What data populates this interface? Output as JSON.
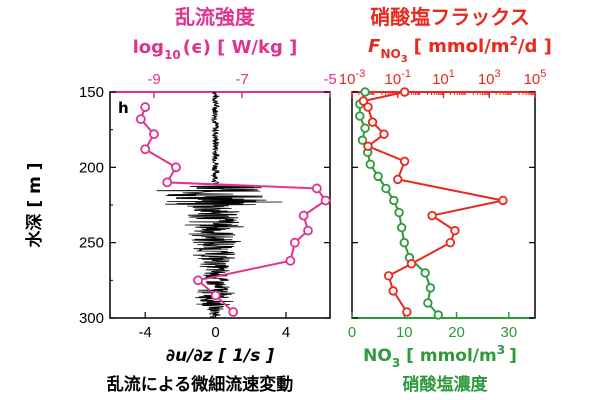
{
  "colors": {
    "magenta": "#e0338f",
    "red": "#e8291e",
    "green": "#2e9a3c",
    "black": "#000000"
  },
  "chart_data": [
    {
      "type": "line",
      "panel": "left",
      "panel_letter": "h",
      "title_top": "乱流強度",
      "top_axis_label": {
        "main": "log",
        "sub": "10",
        "rest": "(ϵ)  [ W/kg ]"
      },
      "bottom_axis_label": "∂u/∂z  [ 1/s ]",
      "bottom_title": "乱流による微細流速変動",
      "ylabel": "水深  [ m ]",
      "y_ticks": [
        "150",
        "200",
        "250",
        "300"
      ],
      "ylim": [
        150,
        300
      ],
      "bottom_ticks": [
        "-4",
        "0",
        "4"
      ],
      "bottom_xlim": [
        -6,
        6.5
      ],
      "top_ticks": [
        "-9",
        "-7",
        "-5"
      ],
      "top_xlim": [
        -10,
        -5
      ],
      "series": [
        {
          "axis": "top",
          "color": "magenta",
          "depth": [
            160,
            168,
            178,
            188,
            200,
            210,
            214,
            222,
            232,
            242,
            250,
            262,
            275,
            285,
            296
          ],
          "log10_eps": [
            -9.2,
            -9.3,
            -9.0,
            -9.2,
            -8.5,
            -8.7,
            -5.3,
            -5.1,
            -5.6,
            -5.5,
            -5.8,
            -5.9,
            -8.0,
            -7.6,
            -7.2
          ]
        }
      ]
    },
    {
      "type": "line",
      "panel": "right",
      "title_top": "硝酸塩フラックス",
      "top_axis_label": {
        "main": "F",
        "sub": "NO",
        "sub2": "3",
        "rest": "[ mmol/m",
        "sup": "2",
        "rest2": "/d ]"
      },
      "top_ticks": [
        {
          "base": "10",
          "exp": "-3"
        },
        {
          "base": "10",
          "exp": "-1"
        },
        {
          "base": "10",
          "exp": "1"
        },
        {
          "base": "10",
          "exp": "3"
        },
        {
          "base": "10",
          "exp": "5"
        }
      ],
      "top_xlim_log10": [
        -3,
        5
      ],
      "bottom_ticks": [
        "0",
        "10",
        "20",
        "30"
      ],
      "bottom_xlim": [
        0,
        35
      ],
      "bottom_axis_label": {
        "main": "NO",
        "sub": "3",
        "rest": "[ mmol/m",
        "sup": "3",
        "rest2": "]"
      },
      "bottom_title": "硝酸塩濃度",
      "ylim": [
        150,
        300
      ],
      "series": [
        {
          "axis": "top",
          "color": "red",
          "depth": [
            150,
            156,
            160,
            170,
            178,
            186,
            196,
            208,
            222,
            232,
            242,
            250,
            264,
            272,
            282,
            296
          ],
          "log10_flux": [
            -0.7,
            -2.5,
            -2.3,
            -2.1,
            -1.6,
            -2.3,
            -0.7,
            -1.0,
            3.6,
            0.5,
            1.5,
            1.3,
            -0.4,
            -1.4,
            -1.2,
            -0.6
          ]
        },
        {
          "axis": "bottom",
          "color": "green",
          "depth": [
            150,
            158,
            166,
            174,
            182,
            190,
            198,
            206,
            214,
            222,
            230,
            240,
            250,
            260,
            270,
            280,
            290,
            298
          ],
          "no3": [
            2.5,
            1.5,
            1.5,
            2.5,
            2.0,
            3.0,
            3.5,
            5.0,
            6.5,
            8.0,
            9.0,
            9.5,
            10.0,
            11.0,
            14.0,
            15.0,
            14.5,
            16.5
          ]
        }
      ]
    }
  ]
}
